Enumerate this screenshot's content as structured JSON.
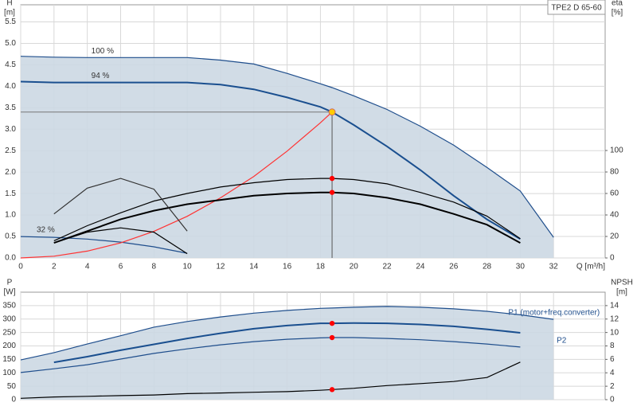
{
  "chart_data": [
    {
      "type": "line",
      "title": "TPE2 D 65-60",
      "ylabel": "H",
      "ylabel_unit": "[m]",
      "y2label": "eta",
      "y2label_unit": "[%]",
      "xlabel": "Q [m³/h]",
      "x": [
        0,
        2,
        4,
        6,
        8,
        10,
        12,
        14,
        16,
        18,
        18.7,
        20,
        22,
        24,
        26,
        28,
        30,
        32
      ],
      "xlim": [
        0,
        35.1
      ],
      "xticks": [
        0,
        2,
        4,
        6,
        8,
        10,
        12,
        14,
        16,
        18,
        20,
        22,
        24,
        26,
        28,
        30,
        32
      ],
      "ylim": [
        0,
        5.9
      ],
      "yticks": [
        {
          "value": 0,
          "label": "0.0"
        },
        0.5,
        {
          "value": 1,
          "label": "1.0"
        },
        1.5,
        {
          "value": 2,
          "label": "2.0"
        },
        2.5,
        {
          "value": 3,
          "label": "3.0"
        },
        3.5,
        {
          "value": 4,
          "label": "4.0"
        },
        4.5,
        {
          "value": 5,
          "label": "5.0"
        },
        5.5
      ],
      "y2lim": [
        0,
        235.6
      ],
      "y2ticks": [
        0,
        20,
        40,
        60,
        80,
        100
      ],
      "grid": true,
      "duty_point": {
        "x": 18.7,
        "y": 3.4
      },
      "area_color": "#ccd8e3",
      "series": [
        {
          "label": "100 %",
          "color": "#1f4e8c",
          "area": true,
          "values": [
            4.7,
            4.68,
            4.67,
            4.67,
            4.67,
            4.67,
            4.61,
            4.52,
            4.3,
            4.06,
            3.97,
            3.78,
            3.46,
            3.07,
            2.63,
            2.11,
            1.56,
            0.48
          ]
        },
        {
          "label": "94 %",
          "color": "#1a4f8f",
          "dot_color": "#ffcc00",
          "values": [
            4.11,
            4.09,
            4.09,
            4.09,
            4.09,
            4.09,
            4.04,
            3.93,
            3.74,
            3.52,
            3.4,
            3.1,
            2.6,
            2.05,
            1.45,
            0.9,
            0.44,
            null
          ]
        },
        {
          "label": "32 %",
          "color": "#1f4e8c",
          "values": [
            0.5,
            0.48,
            0.44,
            0.37,
            0.26,
            0.11,
            null,
            null,
            null,
            null,
            null,
            null,
            null,
            null,
            null,
            null,
            null,
            null
          ]
        },
        {
          "color": "#ff3333",
          "values": [
            0,
            0.04,
            0.16,
            0.35,
            0.62,
            0.97,
            1.4,
            1.9,
            2.49,
            3.15,
            3.4,
            null,
            null,
            null,
            null,
            null,
            null,
            null
          ]
        },
        {
          "color": "#000000",
          "axis": "y2",
          "dot_color": "#ff0000",
          "values": [
            null,
            16,
            30,
            42,
            53,
            60,
            66,
            70,
            73,
            74,
            74,
            73,
            69,
            61,
            52,
            39,
            18,
            null
          ]
        },
        {
          "color": "#000000",
          "axis": "y2",
          "dot_color": "#ff0000",
          "values": [
            null,
            14,
            25,
            36,
            44,
            50,
            54,
            58,
            60,
            61,
            61,
            60,
            56,
            50,
            41,
            31,
            14,
            null
          ]
        },
        {
          "color": "#333333",
          "axis": "y2",
          "values": [
            null,
            41,
            65,
            74,
            64,
            25,
            null,
            null,
            null,
            null,
            null,
            null,
            null,
            null,
            null,
            null,
            null,
            null
          ]
        },
        {
          "color": "#000000",
          "axis": "y2",
          "values": [
            null,
            14,
            24,
            28,
            24,
            4,
            null,
            null,
            null,
            null,
            null,
            null,
            null,
            null,
            null,
            null,
            null,
            null
          ]
        }
      ]
    },
    {
      "type": "line",
      "ylabel": "P",
      "ylabel_unit": "[W]",
      "y2label": "NPSH",
      "y2label_unit": "[m]",
      "x": [
        0,
        2,
        4,
        6,
        8,
        10,
        12,
        14,
        16,
        18,
        18.7,
        20,
        22,
        24,
        26,
        28,
        30,
        32
      ],
      "xlim": [
        0,
        35.1
      ],
      "ylim": [
        0,
        400
      ],
      "yticks": [
        0,
        50,
        100,
        150,
        200,
        250,
        300,
        350
      ],
      "y2lim": [
        0,
        16
      ],
      "y2ticks": [
        0,
        2,
        4,
        6,
        8,
        10,
        12,
        14
      ],
      "grid": true,
      "area_color": "#ccd8e3",
      "series": [
        {
          "label": "P1 (motor+freq.converter)",
          "color": "#1f4e8c",
          "area": true,
          "values": [
            148,
            175,
            207,
            238,
            270,
            291,
            308,
            322,
            332,
            340,
            341,
            344,
            347,
            344,
            338,
            329,
            316,
            299
          ]
        },
        {
          "color": "#1a4f8f",
          "dot_color": "#ff0000",
          "values": [
            null,
            139,
            160,
            184,
            206,
            228,
            247,
            264,
            276,
            284,
            284,
            285,
            284,
            280,
            273,
            262,
            249,
            null
          ]
        },
        {
          "label": "P2",
          "color": "#1f4e8c",
          "dot_color": "#ff0000",
          "values": [
            101,
            115,
            130,
            151,
            172,
            189,
            204,
            216,
            225,
            230,
            231,
            231,
            228,
            223,
            216,
            207,
            196,
            null
          ]
        },
        {
          "color": "#000000",
          "axis": "y2",
          "dot_color": "#ff0000",
          "values": [
            0.2,
            0.4,
            0.5,
            0.6,
            0.7,
            0.9,
            1,
            1.1,
            1.2,
            1.4,
            1.5,
            1.7,
            2.1,
            2.4,
            2.7,
            3.3,
            5.6,
            null
          ]
        }
      ]
    }
  ]
}
